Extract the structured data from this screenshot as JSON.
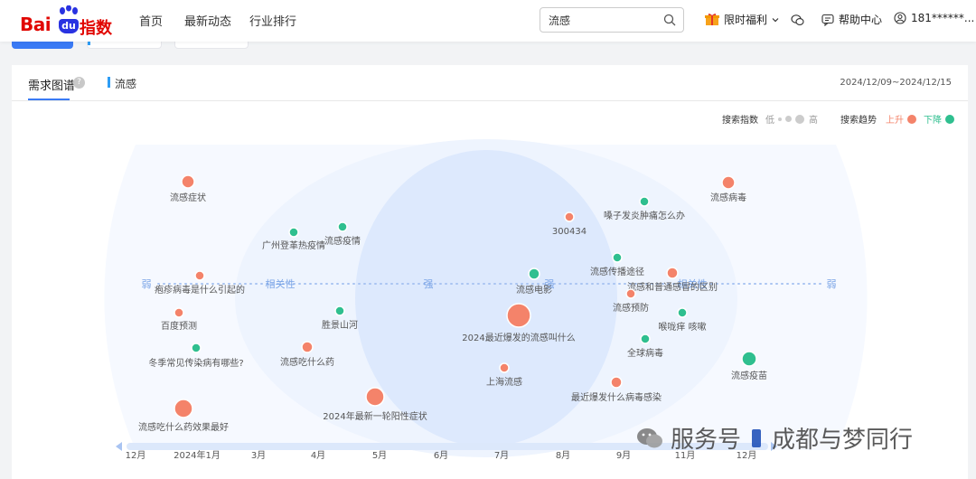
{
  "header": {
    "logo_text_bai": "Bai",
    "logo_text_du": "du",
    "logo_text_zhishu": "指数",
    "nav": [
      "首页",
      "最新动态",
      "行业排行"
    ],
    "search": {
      "value": "流感",
      "placeholder": ""
    },
    "promo": "限时福利",
    "help": "帮助中心",
    "user": "181******..."
  },
  "card": {
    "tab_title": "需求图谱",
    "keyword": "流感",
    "date_range": "2024/12/09~2024/12/15",
    "legend": {
      "index_label": "搜索指数",
      "low": "低",
      "high": "高",
      "trend_label": "搜索趋势",
      "up": "上升",
      "down": "下降",
      "up_color": "#f4836a",
      "down_color": "#2fbf8f"
    }
  },
  "chart_data": {
    "type": "bubble-graph",
    "center_keyword": "流感",
    "axis_words": {
      "weak": "弱",
      "relevance": "相关性",
      "strong": "强"
    },
    "timeline_ticks": [
      "12月",
      "2024年1月",
      "3月",
      "4月",
      "5月",
      "6月",
      "7月",
      "8月",
      "9月",
      "11月",
      "12月"
    ],
    "nodes": [
      {
        "label": "流感症状",
        "trend": "up"
      },
      {
        "label": "流感病毒",
        "trend": "up"
      },
      {
        "label": "嗓子发炎肿痛怎么办",
        "trend": "down"
      },
      {
        "label": "300434",
        "trend": "up"
      },
      {
        "label": "广州登革热疫情",
        "trend": "down"
      },
      {
        "label": "流感疫情",
        "trend": "down"
      },
      {
        "label": "流感传播途径",
        "trend": "down"
      },
      {
        "label": "疱疹病毒是什么引起的",
        "trend": "up"
      },
      {
        "label": "流感电影",
        "trend": "down"
      },
      {
        "label": "流感和普通感冒的区别",
        "trend": "up"
      },
      {
        "label": "流感预防",
        "trend": "up"
      },
      {
        "label": "百度预测",
        "trend": "up"
      },
      {
        "label": "胜景山河",
        "trend": "down"
      },
      {
        "label": "喉咙痒 咳嗽",
        "trend": "down"
      },
      {
        "label": "2024最近爆发的流感叫什么",
        "trend": "up"
      },
      {
        "label": "冬季常见传染病有哪些?",
        "trend": "down"
      },
      {
        "label": "流感吃什么药",
        "trend": "up"
      },
      {
        "label": "全球病毒",
        "trend": "down"
      },
      {
        "label": "流感疫苗",
        "trend": "down"
      },
      {
        "label": "上海流感",
        "trend": "up"
      },
      {
        "label": "最近爆发什么病毒感染",
        "trend": "up"
      },
      {
        "label": "流感吃什么药效果最好",
        "trend": "up"
      },
      {
        "label": "2024年最新一轮阳性症状",
        "trend": "up"
      }
    ]
  },
  "watermark": {
    "left": "服务号",
    "right": "成都与梦同行"
  }
}
